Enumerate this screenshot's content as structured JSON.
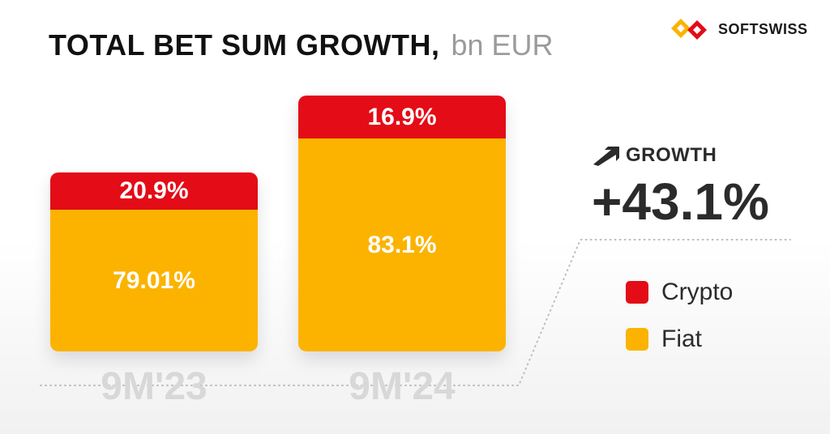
{
  "title": {
    "main": "TOTAL BET SUM GROWTH,",
    "unit": "bn EUR"
  },
  "logo": {
    "text": "SOFTSWISS"
  },
  "growth": {
    "label": "GROWTH",
    "value": "+43.1%"
  },
  "colors": {
    "crypto": "#e30c17",
    "fiat": "#fbb300"
  },
  "chart_data": {
    "type": "bar",
    "stacked": true,
    "title": "TOTAL BET SUM GROWTH, bn EUR",
    "categories": [
      "9M'23",
      "9M'24"
    ],
    "bar_heights_relative": [
      1.0,
      1.431
    ],
    "series": [
      {
        "name": "Fiat",
        "values": [
          79.01,
          83.1
        ],
        "labels": [
          "79.01%",
          "83.1%"
        ],
        "color": "#fbb300"
      },
      {
        "name": "Crypto",
        "values": [
          20.9,
          16.9
        ],
        "labels": [
          "20.9%",
          "16.9%"
        ],
        "color": "#e30c17"
      }
    ],
    "legend": {
      "position": "right",
      "items": [
        "Crypto",
        "Fiat"
      ]
    },
    "growth_annotation": "+43.1%",
    "grid": false
  }
}
